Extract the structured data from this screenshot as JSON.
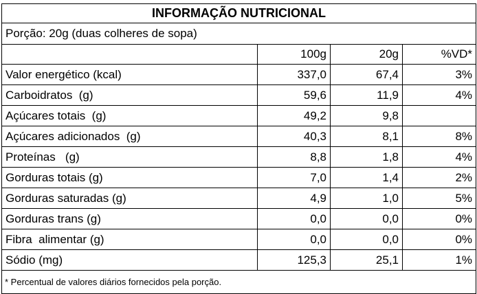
{
  "title": "INFORMAÇÃO NUTRICIONAL",
  "portion": "Porção: 20g (duas colheres de sopa)",
  "table": {
    "columns": [
      "100g",
      "20g",
      "%VD*"
    ],
    "rows": [
      [
        "Valor energético (kcal)",
        "337,0",
        "67,4",
        "3%"
      ],
      [
        "Carboidratos  (g)",
        "59,6",
        "11,9",
        "4%"
      ],
      [
        "Açúcares totais  (g)",
        "49,2",
        "9,8"
      ],
      [
        "Açúcares adicionados  (g)",
        "40,3",
        "8,1",
        "8%"
      ],
      [
        "Proteínas   (g)",
        "8,8",
        "1,8",
        "4%"
      ],
      [
        "Gorduras totais (g)",
        "7,0",
        "1,4",
        "2%"
      ],
      [
        "Gorduras saturadas (g)",
        "4,9",
        "1,0",
        "5%"
      ],
      [
        "Gorduras trans (g)",
        "0,0",
        "0,0",
        "0%"
      ],
      [
        "Fibra  alimentar (g)",
        "0,0",
        "0,0",
        "0%"
      ],
      [
        "Sódio (mg)",
        "125,3",
        "25,1",
        "1%"
      ]
    ]
  },
  "footnote": "* Percentual de valores diários fornecidos pela porção."
}
